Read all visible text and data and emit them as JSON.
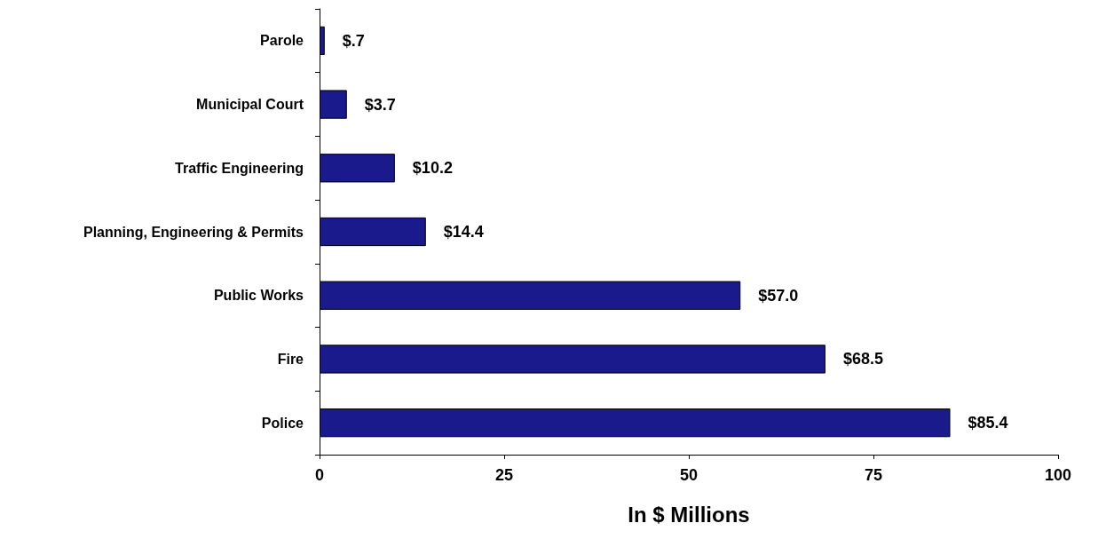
{
  "chart_data": {
    "type": "bar",
    "orientation": "horizontal",
    "xlabel": "In $ Millions",
    "categories": [
      "Parole",
      "Municipal Court",
      "Traffic Engineering",
      "Planning, Engineering & Permits",
      "Public Works",
      "Fire",
      "Police"
    ],
    "values": [
      0.7,
      3.7,
      10.2,
      14.4,
      57.0,
      68.5,
      85.4
    ],
    "value_labels": [
      "$.7",
      "$3.7",
      "$10.2",
      "$14.4",
      "$57.0",
      "$68.5",
      "$85.4"
    ],
    "color": "#1a1a8c",
    "xlim": [
      0,
      100
    ],
    "xticks": [
      0,
      25,
      50,
      75,
      100
    ],
    "grid": false
  }
}
